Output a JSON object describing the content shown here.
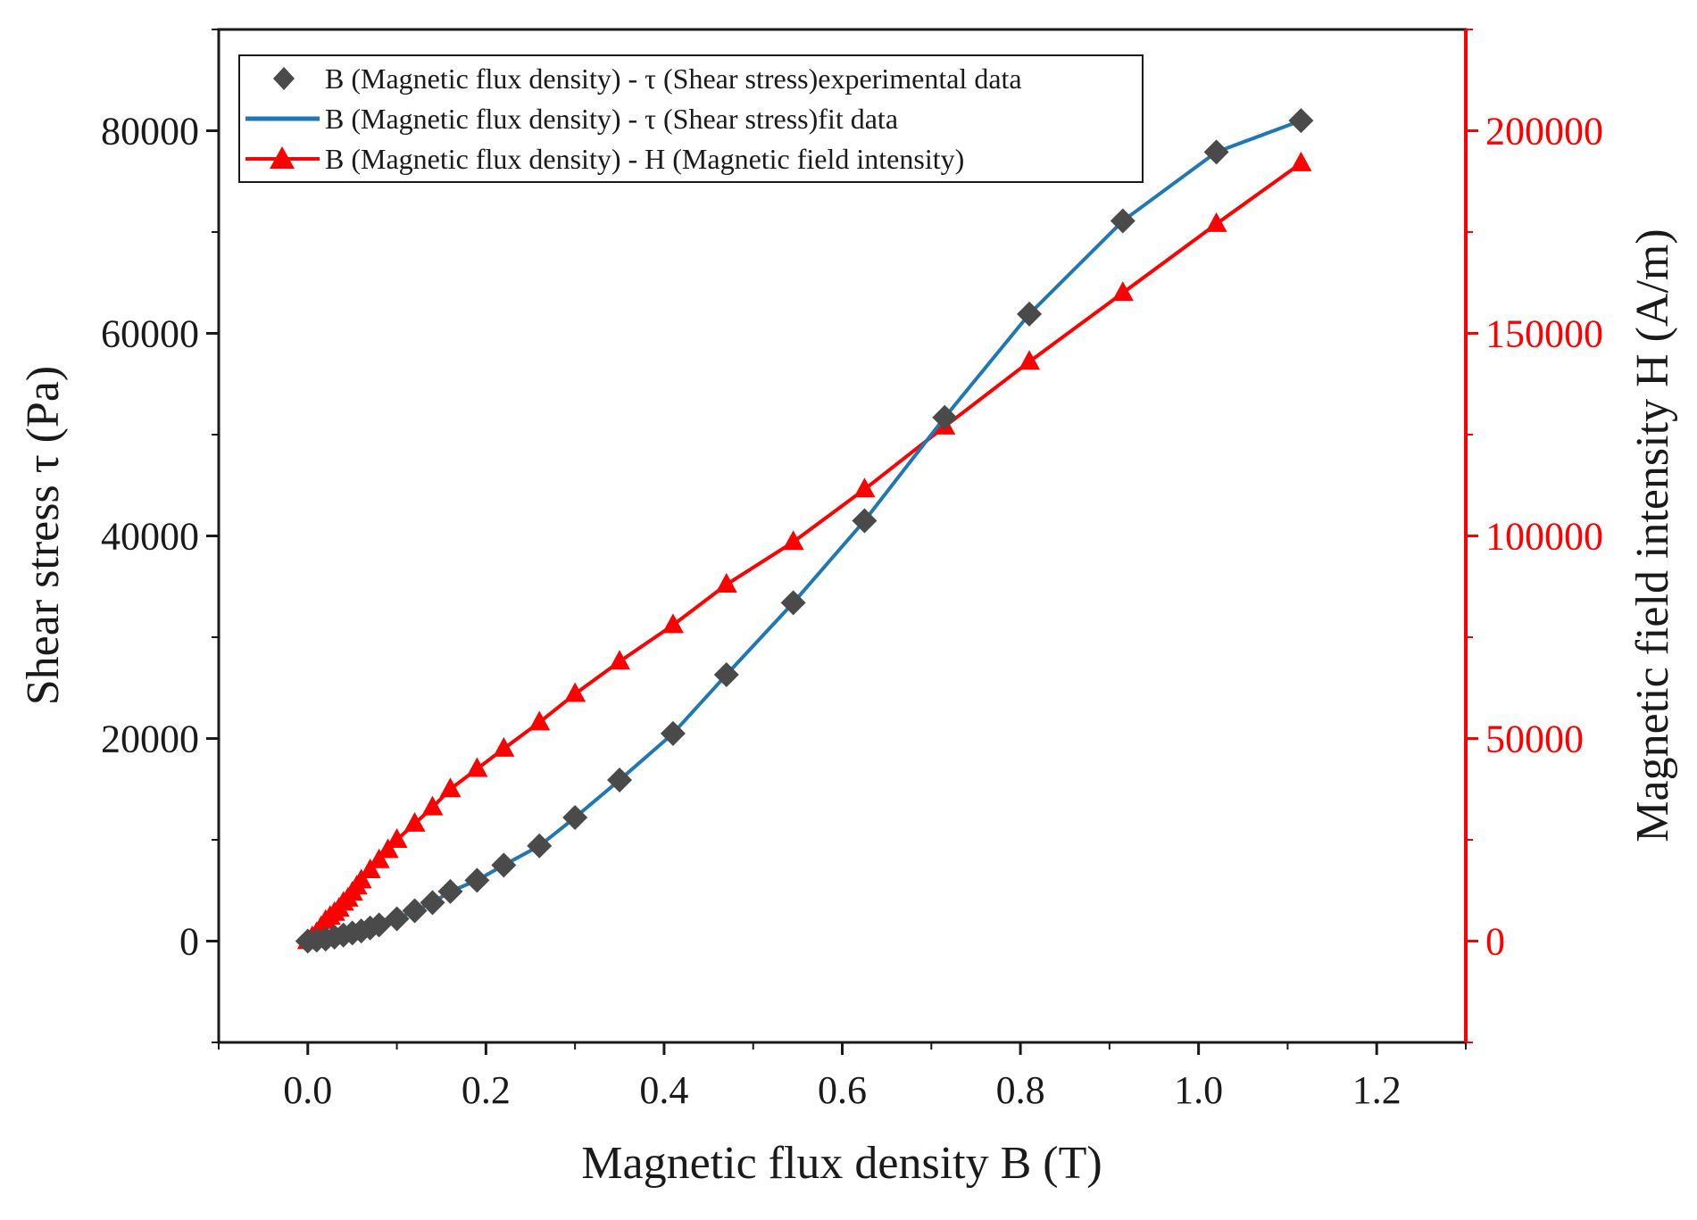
{
  "chart_data": {
    "type": "line",
    "xlabel": "Magnetic flux density B (T)",
    "ylabel_left": "Shear stress τ (Pa)",
    "ylabel_right": "Magnetic field intensity H (A/m)",
    "xlim": [
      -0.1,
      1.3
    ],
    "ylim_left": [
      -10000,
      90000
    ],
    "ylim_right": [
      -25000,
      225000
    ],
    "x_ticks": [
      "0.0",
      "0.2",
      "0.4",
      "0.6",
      "0.8",
      "1.0",
      "1.2"
    ],
    "y_left_ticks": [
      "0",
      "20000",
      "40000",
      "60000",
      "80000"
    ],
    "y_right_ticks": [
      "0",
      "50000",
      "100000",
      "150000",
      "200000"
    ],
    "colors": {
      "experimental": "#4a4a4a",
      "fit": "#1f77b4",
      "h_series": "#ff0000",
      "right_axis": "#ff0000",
      "left_axis": "#1a1a1a"
    },
    "legend": {
      "placement": "top-left",
      "entries": [
        "B (Magnetic flux density) - τ (Shear stress)experimental data",
        "B (Magnetic flux density) - τ (Shear stress)fit data",
        "B (Magnetic flux density) - H (Magnetic field intensity)"
      ]
    },
    "series": [
      {
        "name": "B (Magnetic flux density) - τ (Shear stress)experimental data",
        "axis": "left",
        "marker": "diamond",
        "x": [
          0.0,
          0.01,
          0.02,
          0.03,
          0.04,
          0.05,
          0.06,
          0.07,
          0.08,
          0.1,
          0.12,
          0.14,
          0.16,
          0.19,
          0.22,
          0.26,
          0.3,
          0.35,
          0.41,
          0.47,
          0.545,
          0.625,
          0.715,
          0.81,
          0.915,
          1.02,
          1.115
        ],
        "y": [
          0,
          100,
          200,
          400,
          600,
          800,
          1000,
          1300,
          1600,
          2200,
          3000,
          3800,
          4900,
          6000,
          7500,
          9400,
          12200,
          15900,
          20500,
          26300,
          33400,
          41500,
          51700,
          61900,
          71100,
          77900,
          81000
        ]
      },
      {
        "name": "B (Magnetic flux density) - τ (Shear stress)fit data",
        "axis": "left",
        "marker": "none",
        "x": [
          0.0,
          0.01,
          0.02,
          0.03,
          0.04,
          0.05,
          0.06,
          0.07,
          0.08,
          0.1,
          0.12,
          0.14,
          0.16,
          0.19,
          0.22,
          0.26,
          0.3,
          0.35,
          0.41,
          0.47,
          0.545,
          0.625,
          0.715,
          0.81,
          0.915,
          1.02,
          1.115
        ],
        "y": [
          0,
          100,
          200,
          400,
          600,
          800,
          1000,
          1300,
          1600,
          2200,
          3000,
          3800,
          4900,
          6000,
          7500,
          9400,
          12200,
          15900,
          20500,
          26300,
          33400,
          41500,
          51700,
          61900,
          71100,
          77900,
          81000
        ]
      },
      {
        "name": "B (Magnetic flux density) - H (Magnetic field intensity)",
        "axis": "right",
        "marker": "triangle",
        "x": [
          0.0,
          0.005,
          0.01,
          0.015,
          0.02,
          0.025,
          0.03,
          0.035,
          0.04,
          0.045,
          0.05,
          0.055,
          0.06,
          0.07,
          0.08,
          0.09,
          0.1,
          0.12,
          0.14,
          0.16,
          0.19,
          0.22,
          0.26,
          0.3,
          0.35,
          0.41,
          0.47,
          0.545,
          0.625,
          0.715,
          0.81,
          0.915,
          1.02,
          1.115
        ],
        "y": [
          0,
          1000,
          2000,
          3500,
          5000,
          6000,
          7000,
          8000,
          9500,
          10500,
          12000,
          13500,
          15000,
          17500,
          20000,
          22500,
          25000,
          29000,
          33000,
          37500,
          42500,
          47500,
          54000,
          61000,
          69000,
          78000,
          88000,
          98500,
          111500,
          127000,
          143000,
          160000,
          177000,
          192000
        ]
      }
    ]
  }
}
